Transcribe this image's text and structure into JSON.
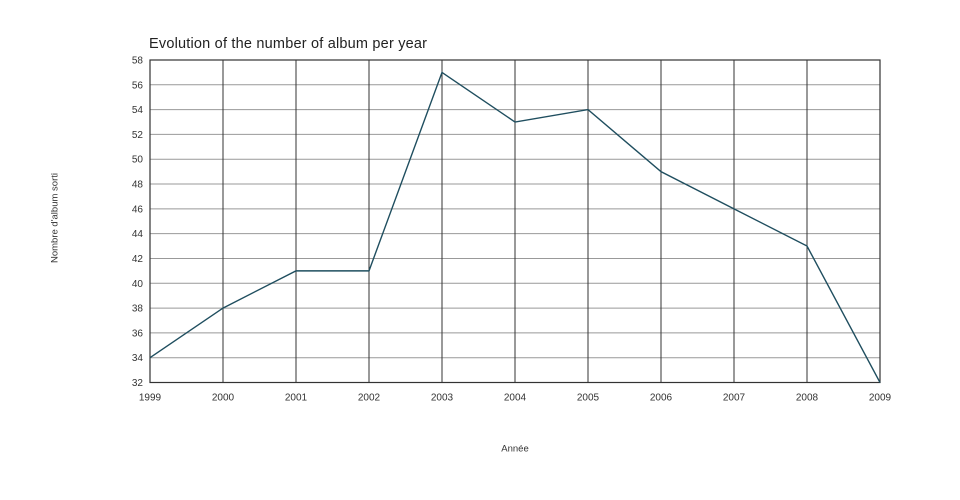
{
  "title": "Evolution of the number of album per year",
  "chart_data": {
    "type": "line",
    "x": [
      "1999",
      "2000",
      "2001",
      "2002",
      "2003",
      "2004",
      "2005",
      "2006",
      "2007",
      "2008",
      "2009"
    ],
    "values": [
      34,
      38,
      41,
      41,
      57,
      53,
      54,
      49,
      46,
      43,
      32
    ],
    "title": "Evolution of the number of album per year",
    "xlabel": "Année",
    "ylabel": "Nombre d'album sorti",
    "ylim": [
      32,
      58
    ],
    "yticks": [
      58,
      56,
      54,
      52,
      50,
      48,
      46,
      44,
      42,
      40,
      38,
      36,
      34,
      32
    ],
    "grid": "on",
    "legend": "none",
    "colors": {
      "line": "#1f4e5f",
      "hgrid": "#999999",
      "vgrid": "#333333",
      "border": "#333333",
      "tick_text": "#333333",
      "title_text": "#222222",
      "background": "#ffffff"
    }
  }
}
